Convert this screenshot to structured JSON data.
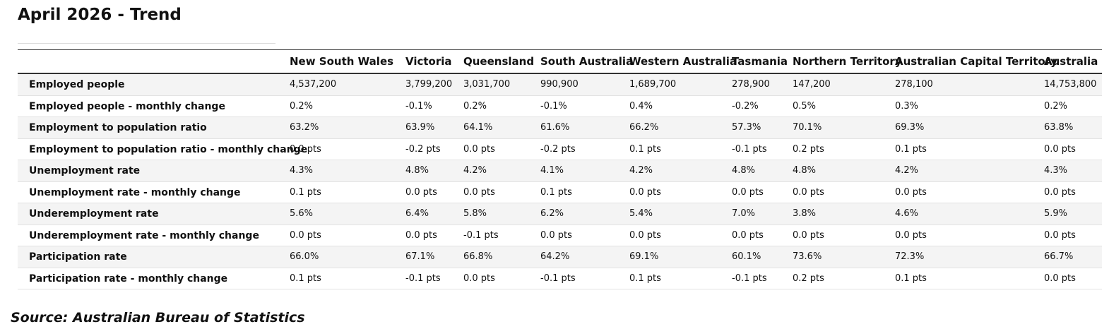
{
  "title": "April 2026 - Trend",
  "table": {
    "header": [
      "New South Wales",
      "Victoria",
      "Queensland",
      "South Australia",
      "Western Australia",
      "Tasmania",
      "Northern Territory",
      "Australian Capital Territory",
      "Australia"
    ],
    "rows": [
      [
        "Employed people",
        "4,537,200",
        "3,799,200",
        "3,031,700",
        "990,900",
        "1,689,700",
        "278,900",
        "147,200",
        "278,100",
        "14,753,800"
      ],
      [
        "Employed people - monthly change",
        "0.2%",
        "-0.1%",
        "0.2%",
        "-0.1%",
        "0.4%",
        "-0.2%",
        "0.5%",
        "0.3%",
        "0.2%"
      ],
      [
        "Employment to population ratio",
        "63.2%",
        "63.9%",
        "64.1%",
        "61.6%",
        "66.2%",
        "57.3%",
        "70.1%",
        "69.3%",
        "63.8%"
      ],
      [
        "Employment to population ratio - monthly change",
        "0.0 pts",
        "-0.2 pts",
        "0.0 pts",
        "-0.2 pts",
        "0.1 pts",
        "-0.1 pts",
        "0.2 pts",
        "0.1 pts",
        "0.0 pts"
      ],
      [
        "Unemployment rate",
        "4.3%",
        "4.8%",
        "4.2%",
        "4.1%",
        "4.2%",
        "4.8%",
        "4.8%",
        "4.2%",
        "4.3%"
      ],
      [
        "Unemployment rate - monthly change",
        "0.1 pts",
        "0.0 pts",
        "0.0 pts",
        "0.1 pts",
        "0.0 pts",
        "0.0 pts",
        "0.0 pts",
        "0.0 pts",
        "0.0 pts"
      ],
      [
        "Underemployment rate",
        "5.6%",
        "6.4%",
        "5.8%",
        "6.2%",
        "5.4%",
        "7.0%",
        "3.8%",
        "4.6%",
        "5.9%"
      ],
      [
        "Underemployment rate - monthly change",
        "0.0 pts",
        "0.0 pts",
        "-0.1 pts",
        "0.0 pts",
        "0.0 pts",
        "0.0 pts",
        "0.0 pts",
        "0.0 pts",
        "0.0 pts"
      ],
      [
        "Participation rate",
        "66.0%",
        "67.1%",
        "66.8%",
        "64.2%",
        "69.1%",
        "60.1%",
        "73.6%",
        "72.3%",
        "66.7%"
      ],
      [
        "Participation rate - monthly change",
        "0.1 pts",
        "-0.1 pts",
        "0.0 pts",
        "-0.1 pts",
        "0.1 pts",
        "-0.1 pts",
        "0.2 pts",
        "0.1 pts",
        "0.0 pts"
      ]
    ]
  },
  "source": "Source: Australian Bureau of Statistics"
}
